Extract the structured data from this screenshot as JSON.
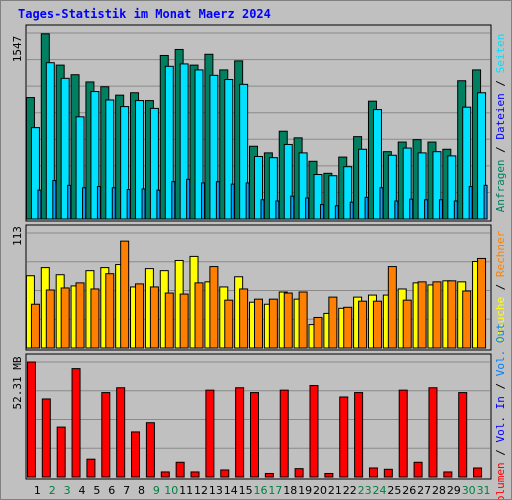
{
  "title": "Tages-Statistik im Monat Maerz 2024",
  "colors": {
    "background": "#c0c0c0",
    "plot_bg": "#c0c0c0",
    "grid": "#8a8a8a",
    "anfragen": "#008060",
    "dateien": "#00e0ff",
    "seiten": "#00a0ff",
    "besuche": "#ffff00",
    "rechner": "#ff8000",
    "volumen": "#ff0000",
    "vol_in": "#0000ff",
    "vol_out": "#0080ff",
    "weekend_label": "#008040",
    "title": "#0000ff"
  },
  "chart_data": [
    {
      "type": "bar",
      "panel": "requests",
      "ymax_label": "1547",
      "ylim": [
        0,
        1547
      ],
      "categories": [
        "1",
        "2",
        "3",
        "4",
        "5",
        "6",
        "7",
        "8",
        "9",
        "10",
        "11",
        "12",
        "13",
        "14",
        "15",
        "16",
        "17",
        "18",
        "19",
        "20",
        "21",
        "22",
        "23",
        "24",
        "25",
        "26",
        "27",
        "28",
        "29",
        "30",
        "31"
      ],
      "weekend_days": [
        "2",
        "3",
        "9",
        "10",
        "16",
        "17",
        "23",
        "24",
        "30",
        "31"
      ],
      "series": [
        {
          "name": "Anfragen",
          "values": [
            1010,
            1540,
            1280,
            1200,
            1140,
            1100,
            1030,
            1050,
            985,
            1360,
            1410,
            1280,
            1370,
            1240,
            1315,
            605,
            550,
            730,
            675,
            480,
            380,
            515,
            685,
            980,
            560,
            640,
            660,
            640,
            580,
            1150,
            1240
          ]
        },
        {
          "name": "Dateien",
          "values": [
            760,
            1300,
            1170,
            850,
            1060,
            990,
            935,
            985,
            920,
            1270,
            1290,
            1240,
            1195,
            1160,
            1120,
            520,
            510,
            620,
            550,
            370,
            360,
            435,
            580,
            910,
            530,
            590,
            550,
            560,
            525,
            930,
            1050
          ]
        },
        {
          "name": "Seiten",
          "values": [
            240,
            320,
            280,
            260,
            270,
            260,
            245,
            250,
            240,
            310,
            330,
            300,
            310,
            290,
            300,
            160,
            150,
            190,
            175,
            120,
            110,
            140,
            180,
            260,
            150,
            165,
            160,
            160,
            150,
            270,
            280
          ]
        }
      ]
    },
    {
      "type": "bar",
      "panel": "visits",
      "ymax_label": "113",
      "ylim": [
        0,
        113
      ],
      "series": [
        {
          "name": "Besuche",
          "values": [
            71,
            79,
            72,
            61,
            76,
            79,
            82,
            60,
            78,
            76,
            86,
            90,
            65,
            60,
            70,
            45,
            43,
            55,
            48,
            23,
            34,
            39,
            50,
            52,
            52,
            58,
            64,
            62,
            66,
            65,
            85
          ]
        },
        {
          "name": "Rechner",
          "values": [
            43,
            57,
            59,
            64,
            58,
            73,
            105,
            63,
            60,
            54,
            53,
            64,
            80,
            47,
            58,
            48,
            48,
            54,
            55,
            30,
            50,
            40,
            46,
            46,
            80,
            47,
            65,
            65,
            66,
            56,
            88
          ]
        }
      ]
    },
    {
      "type": "bar",
      "panel": "volume",
      "ymax_label": "52.31 MB",
      "ylim": [
        0,
        52.31
      ],
      "series": [
        {
          "name": "Volumen",
          "values": [
            52.3,
            35.5,
            22.7,
            49.3,
            8.1,
            38.4,
            40.6,
            20.5,
            24.7,
            2.3,
            6.7,
            2.3,
            39.5,
            3.2,
            40.6,
            38.4,
            1.6,
            39.5,
            3.8,
            41.6,
            1.6,
            36.4,
            38.4,
            4.1,
            3.5,
            39.5,
            6.7,
            40.6,
            2.3,
            38.4,
            4.1
          ]
        },
        {
          "name": "Vol. In",
          "values": []
        },
        {
          "name": "Vol. Out",
          "values": []
        }
      ]
    }
  ],
  "right_labels": {
    "top": [
      {
        "text": "Anfragen",
        "color": "#008060"
      },
      {
        "text": "Dateien",
        "color": "#0000ff"
      },
      {
        "text": "Seiten",
        "color": "#00e0ff"
      }
    ],
    "middle": [
      {
        "text": "Besuche",
        "color": "#ffff00"
      },
      {
        "text": "Rechner",
        "color": "#ff8000"
      }
    ],
    "bottom": [
      {
        "text": "Volumen",
        "color": "#ff0000"
      },
      {
        "text": "Vol. In",
        "color": "#0000ff"
      },
      {
        "text": "Vol. Out",
        "color": "#0080ff"
      }
    ]
  },
  "separator": "/"
}
